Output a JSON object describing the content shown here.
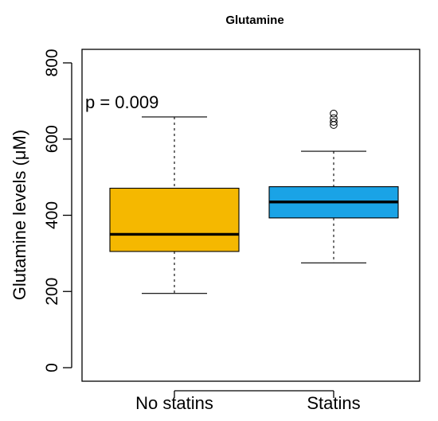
{
  "chart_data": {
    "type": "boxplot",
    "title": "Glutamine",
    "xlabel": "",
    "ylabel": "Glutamine levels (μM)",
    "ylim": [
      0,
      800
    ],
    "yticks": [
      0,
      200,
      400,
      600,
      800
    ],
    "grid": false,
    "legend": "none",
    "annotation": "p = 0.009",
    "categories": [
      "No statins",
      "Statins"
    ],
    "boxes": [
      {
        "category": "No statins",
        "whisker_low": 195,
        "q1": 305,
        "median": 350,
        "q3": 471,
        "whisker_high": 658,
        "outliers": [],
        "color": "#F5B800"
      },
      {
        "category": "Statins",
        "whisker_low": 275,
        "q1": 393,
        "median": 435,
        "q3": 475,
        "whisker_high": 568,
        "outliers": [
          637,
          645,
          655,
          667
        ],
        "color": "#1AA3E6"
      }
    ]
  }
}
